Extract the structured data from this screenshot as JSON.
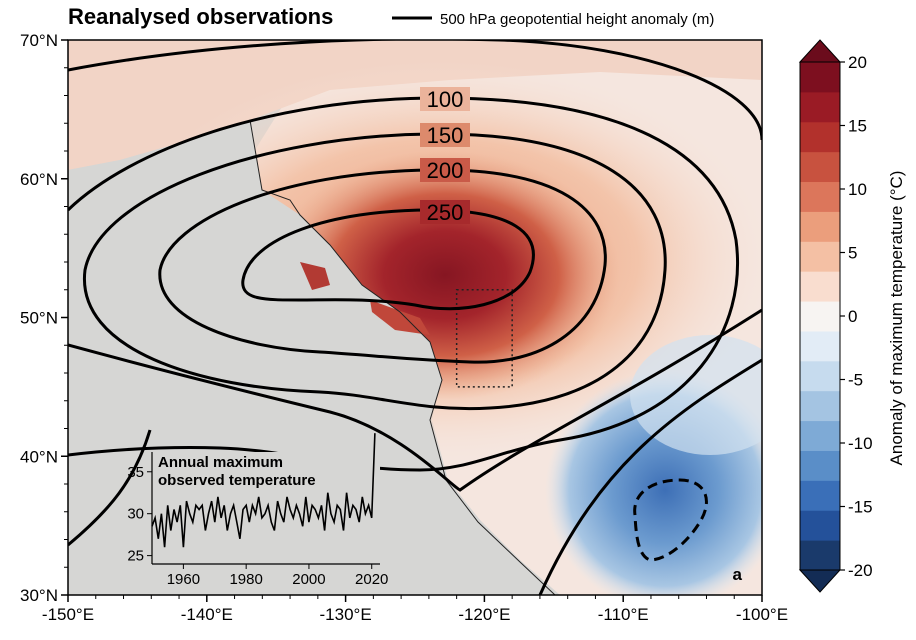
{
  "title": "Reanalysed observations",
  "legend": {
    "label": "500 hPa geopotential height anomaly (m)"
  },
  "map": {
    "lon_range": [
      -150,
      -100
    ],
    "lat_range": [
      30,
      70
    ],
    "x_ticks": [
      "-150°E",
      "-140°E",
      "-130°E",
      "-120°E",
      "-110°E",
      "-100°E"
    ],
    "y_ticks": [
      "30°N",
      "40°N",
      "50°N",
      "60°N",
      "70°N"
    ],
    "contour_labels": [
      "100",
      "150",
      "200",
      "250"
    ],
    "highlight_box": {
      "lon": [
        -122,
        -118
      ],
      "lat": [
        45,
        52
      ]
    },
    "panel_letter": "a"
  },
  "colorbar": {
    "label": "Anomaly of maximum temperature (°C)",
    "ticks": [
      "20",
      "15",
      "10",
      "5",
      "0",
      "-5",
      "-10",
      "-15",
      "-20"
    ],
    "range": [
      -20,
      20
    ],
    "colors": [
      "#1a3a6b",
      "#24519a",
      "#3a6fb8",
      "#5a8ec8",
      "#7eaad6",
      "#a4c4e2",
      "#c6dbee",
      "#e2ecf6",
      "#f7f4f2",
      "#f9ddcf",
      "#f4c0a4",
      "#eb9e7c",
      "#dc765b",
      "#c8523f",
      "#b2312c",
      "#9a1b25",
      "#7d0f1f"
    ]
  },
  "inset": {
    "title_line1": "Annual maximum",
    "title_line2": "observed temperature",
    "y_ticks": [
      "35",
      "30",
      "25"
    ],
    "x_ticks": [
      "1960",
      "1980",
      "2000",
      "2020"
    ],
    "years": [
      1950,
      1951,
      1952,
      1953,
      1954,
      1955,
      1956,
      1957,
      1958,
      1959,
      1960,
      1961,
      1962,
      1963,
      1964,
      1965,
      1966,
      1967,
      1968,
      1969,
      1970,
      1971,
      1972,
      1973,
      1974,
      1975,
      1976,
      1977,
      1978,
      1979,
      1980,
      1981,
      1982,
      1983,
      1984,
      1985,
      1986,
      1987,
      1988,
      1989,
      1990,
      1991,
      1992,
      1993,
      1994,
      1995,
      1996,
      1997,
      1998,
      1999,
      2000,
      2001,
      2002,
      2003,
      2004,
      2005,
      2006,
      2007,
      2008,
      2009,
      2010,
      2011,
      2012,
      2013,
      2014,
      2015,
      2016,
      2017,
      2018,
      2019,
      2020,
      2021
    ],
    "values": [
      28.5,
      29.5,
      27,
      30,
      26,
      31,
      28,
      30.5,
      29,
      31,
      26,
      31.5,
      30,
      29,
      31,
      30.5,
      31,
      28,
      30,
      31.5,
      29,
      32,
      29.5,
      31,
      28,
      30,
      31,
      29,
      27,
      30.5,
      31,
      29,
      31,
      30,
      32,
      29.5,
      30,
      31,
      29,
      28,
      31.5,
      30,
      29,
      32,
      30.5,
      29.5,
      31,
      30,
      28.5,
      32,
      29,
      31,
      30.5,
      29.5,
      31,
      28,
      32.5,
      30,
      29,
      31,
      30.5,
      28,
      32.5,
      29.5,
      31,
      30.5,
      29,
      32,
      30,
      31,
      29.5,
      39.6
    ],
    "ylim": [
      24,
      37
    ],
    "xlim": [
      1950,
      2022
    ]
  }
}
